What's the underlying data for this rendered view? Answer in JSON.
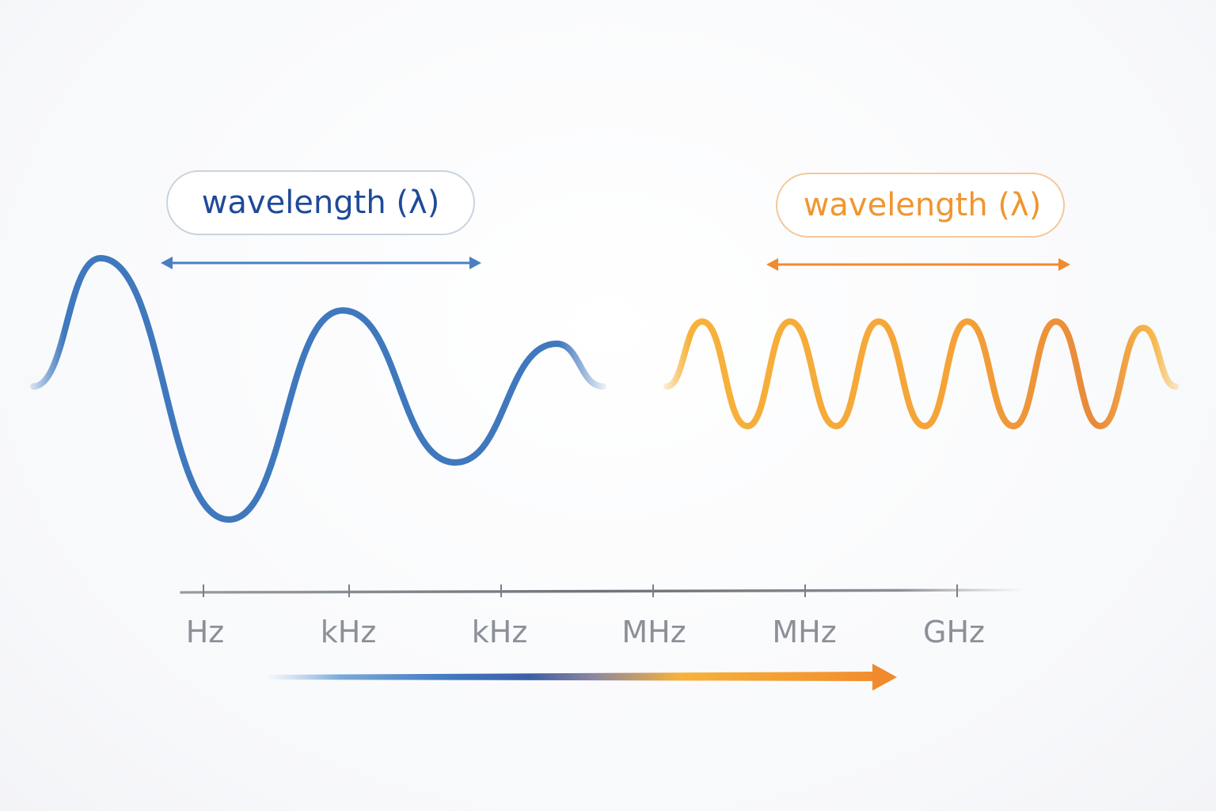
{
  "colors": {
    "blue": "#3f78bd",
    "blue_dark": "#1f4a99",
    "orange": "#f08a2c",
    "orange_light": "#f7b23b",
    "axis": "#7a7f87",
    "label": "#8b9098"
  },
  "left_panel": {
    "label": "wavelength (λ)"
  },
  "right_panel": {
    "label": "wavelength (λ)"
  },
  "frequency_scale": {
    "ticks": [
      "Hz",
      "kHz",
      "kHz",
      "MHz",
      "MHz",
      "GHz"
    ]
  }
}
